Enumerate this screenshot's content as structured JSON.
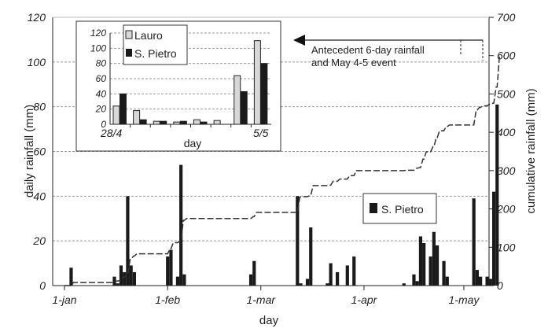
{
  "chart_data": {
    "type": "bar",
    "title": "",
    "xlabel": "day",
    "ylabel": "daily rainfall (mm)",
    "y2label": "cumulative rainfall (mm)",
    "ylim": [
      0,
      120
    ],
    "y2lim": [
      0,
      700
    ],
    "yticks": [
      "0",
      "20",
      "40",
      "60",
      "80",
      "100",
      "120"
    ],
    "y2ticks": [
      "0",
      "100",
      "200",
      "300",
      "400",
      "500",
      "600",
      "700"
    ],
    "xticks": [
      {
        "day": 0,
        "label": "1-jan"
      },
      {
        "day": 31,
        "label": "1-feb"
      },
      {
        "day": 59,
        "label": "1-mar"
      },
      {
        "day": 90,
        "label": "1-apr"
      },
      {
        "day": 120,
        "label": "1-may"
      }
    ],
    "grid": true,
    "legend": {
      "label": "S. Pietro",
      "placement": "center-right"
    },
    "series": [
      {
        "name": "S. Pietro daily rainfall",
        "x": [
          2,
          15,
          16,
          17,
          18,
          19,
          20,
          21,
          31,
          32,
          34,
          35,
          36,
          56,
          57,
          70,
          71,
          73,
          74,
          79,
          80,
          82,
          85,
          87,
          102,
          105,
          106,
          107,
          108,
          110,
          111,
          112,
          114,
          115,
          123,
          124,
          125,
          127,
          128,
          129,
          130
        ],
        "values": [
          8,
          4,
          1,
          9,
          6,
          40,
          9,
          6,
          13,
          16,
          4,
          54,
          5,
          5,
          11,
          40,
          1,
          3,
          26,
          1,
          10,
          6,
          9,
          13,
          1,
          5,
          2,
          22,
          19,
          13,
          24,
          18,
          11,
          4,
          39,
          7,
          4,
          4,
          3,
          42,
          81
        ]
      },
      {
        "name": "cumulative rainfall",
        "derived_from": "S. Pietro daily rainfall",
        "axis": "right"
      }
    ],
    "annotation": "Antecedent 6-day rainfall and May 4-5 event",
    "inset": {
      "type": "bar",
      "xlabel": "day",
      "categories": [
        "28/4",
        "29/4",
        "30/4",
        "1/5",
        "2/5",
        "3/5",
        "4/5",
        "5/5"
      ],
      "shown_tick_labels": [
        "28/4",
        "5/5"
      ],
      "ylim": [
        0,
        120
      ],
      "yticks": [
        "0",
        "20",
        "40",
        "60",
        "80",
        "100",
        "120"
      ],
      "series": [
        {
          "name": "Lauro",
          "color": "#d8d8d8",
          "values": [
            24,
            18,
            4,
            3,
            6,
            5,
            64,
            110
          ]
        },
        {
          "name": "S. Pietro",
          "color": "#1a1a1a",
          "values": [
            40,
            6,
            4,
            4,
            3,
            0,
            43,
            80
          ]
        }
      ]
    }
  }
}
